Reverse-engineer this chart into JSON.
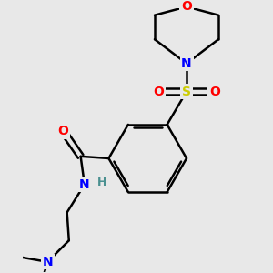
{
  "background_color": "#e8e8e8",
  "atom_colors": {
    "C": "#000000",
    "N": "#0000ff",
    "O": "#ff0000",
    "S": "#cccc00",
    "H": "#4a9090"
  },
  "bond_lw": 1.8,
  "fig_width": 3.0,
  "fig_height": 3.0,
  "dpi": 100
}
